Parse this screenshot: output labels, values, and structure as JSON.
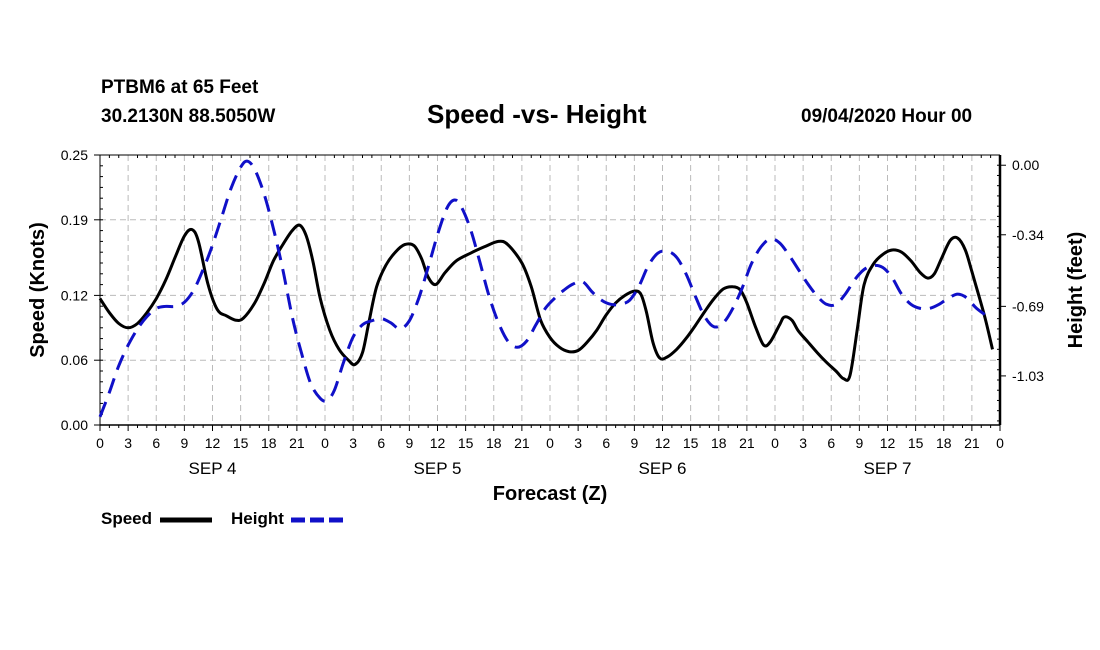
{
  "header": {
    "station": "PTBM6 at 65 Feet",
    "coords": "30.2130N 88.5050W",
    "title": "Speed -vs- Height",
    "date": "09/04/2020 Hour 00"
  },
  "legend": {
    "speed_label": "Speed",
    "height_label": "Height"
  },
  "colors": {
    "speed": "#000000",
    "height": "#1010c8",
    "grid": "#bbbbbb"
  },
  "chart_data": {
    "type": "line",
    "title": "Speed -vs- Height",
    "xlabel": "Forecast (Z)",
    "ylabel_left": "Speed (Knots)",
    "ylabel_right": "Height (feet)",
    "x_tick_labels": [
      "0",
      "3",
      "6",
      "9",
      "12",
      "15",
      "18",
      "21",
      "0",
      "3",
      "6",
      "9",
      "12",
      "15",
      "18",
      "21",
      "0",
      "3",
      "6",
      "9",
      "12",
      "15",
      "18",
      "21",
      "0",
      "3",
      "6",
      "9",
      "12",
      "15",
      "18",
      "21",
      "0"
    ],
    "day_labels": [
      "SEP 4",
      "SEP 5",
      "SEP 6",
      "SEP 7"
    ],
    "y_left_ticks": [
      "0.00",
      "0.06",
      "0.12",
      "0.19",
      "0.25"
    ],
    "y_right_ticks": [
      "0.00",
      "-0.34",
      "-0.69",
      "-1.03"
    ],
    "ylim_left": [
      0,
      0.25
    ],
    "ylim_right": [
      -1.27,
      0.05
    ],
    "xlim_hours": [
      0,
      96
    ],
    "series": [
      {
        "name": "Speed",
        "axis": "left",
        "style": "solid",
        "points": [
          [
            0,
            0.117
          ],
          [
            1,
            0.104
          ],
          [
            2,
            0.094
          ],
          [
            3,
            0.09
          ],
          [
            4,
            0.094
          ],
          [
            5,
            0.104
          ],
          [
            6,
            0.117
          ],
          [
            7,
            0.134
          ],
          [
            8,
            0.155
          ],
          [
            9,
            0.175
          ],
          [
            9.8,
            0.181
          ],
          [
            10.5,
            0.17
          ],
          [
            11.5,
            0.131
          ],
          [
            12.5,
            0.107
          ],
          [
            13.5,
            0.101
          ],
          [
            14.5,
            0.097
          ],
          [
            15.3,
            0.099
          ],
          [
            16.5,
            0.113
          ],
          [
            17.5,
            0.131
          ],
          [
            18.5,
            0.152
          ],
          [
            19.5,
            0.167
          ],
          [
            20.5,
            0.18
          ],
          [
            21.3,
            0.185
          ],
          [
            22,
            0.175
          ],
          [
            22.7,
            0.152
          ],
          [
            23.5,
            0.117
          ],
          [
            24.5,
            0.088
          ],
          [
            25.5,
            0.07
          ],
          [
            26.5,
            0.06
          ],
          [
            27.2,
            0.056
          ],
          [
            28,
            0.067
          ],
          [
            28.7,
            0.096
          ],
          [
            29.5,
            0.128
          ],
          [
            30.5,
            0.148
          ],
          [
            31.5,
            0.16
          ],
          [
            32.5,
            0.167
          ],
          [
            33.5,
            0.166
          ],
          [
            34.3,
            0.154
          ],
          [
            35,
            0.137
          ],
          [
            35.8,
            0.13
          ],
          [
            36.8,
            0.141
          ],
          [
            38,
            0.152
          ],
          [
            39.5,
            0.159
          ],
          [
            41,
            0.165
          ],
          [
            42.5,
            0.17
          ],
          [
            43.5,
            0.167
          ],
          [
            45,
            0.15
          ],
          [
            46,
            0.128
          ],
          [
            47,
            0.097
          ],
          [
            48,
            0.081
          ],
          [
            49,
            0.072
          ],
          [
            50,
            0.068
          ],
          [
            51,
            0.069
          ],
          [
            52,
            0.077
          ],
          [
            53,
            0.088
          ],
          [
            54,
            0.102
          ],
          [
            55,
            0.113
          ],
          [
            56,
            0.12
          ],
          [
            57,
            0.124
          ],
          [
            57.7,
            0.121
          ],
          [
            58.3,
            0.104
          ],
          [
            59,
            0.076
          ],
          [
            59.7,
            0.062
          ],
          [
            60.5,
            0.063
          ],
          [
            61.5,
            0.07
          ],
          [
            62.5,
            0.08
          ],
          [
            63.5,
            0.092
          ],
          [
            64.5,
            0.105
          ],
          [
            65.5,
            0.117
          ],
          [
            66.5,
            0.126
          ],
          [
            67.5,
            0.128
          ],
          [
            68.3,
            0.125
          ],
          [
            69,
            0.113
          ],
          [
            70,
            0.089
          ],
          [
            70.8,
            0.074
          ],
          [
            71.5,
            0.077
          ],
          [
            72.5,
            0.093
          ],
          [
            73,
            0.1
          ],
          [
            73.8,
            0.097
          ],
          [
            74.5,
            0.087
          ],
          [
            75.5,
            0.077
          ],
          [
            76.5,
            0.067
          ],
          [
            77.5,
            0.058
          ],
          [
            78.5,
            0.05
          ],
          [
            79.3,
            0.043
          ],
          [
            80,
            0.046
          ],
          [
            80.8,
            0.09
          ],
          [
            81.5,
            0.13
          ],
          [
            82.5,
            0.149
          ],
          [
            83.5,
            0.158
          ],
          [
            84.5,
            0.162
          ],
          [
            85.5,
            0.16
          ],
          [
            86.5,
            0.152
          ],
          [
            87.5,
            0.141
          ],
          [
            88.3,
            0.136
          ],
          [
            89,
            0.14
          ],
          [
            89.8,
            0.155
          ],
          [
            90.7,
            0.171
          ],
          [
            91.5,
            0.173
          ],
          [
            92.3,
            0.162
          ],
          [
            93,
            0.142
          ],
          [
            93.8,
            0.118
          ],
          [
            94.5,
            0.096
          ],
          [
            95.2,
            0.07
          ]
        ]
      },
      {
        "name": "Height",
        "axis": "right",
        "style": "dashed",
        "points": [
          [
            0,
            -1.23
          ],
          [
            1,
            -1.11
          ],
          [
            2,
            -0.98
          ],
          [
            3,
            -0.88
          ],
          [
            4,
            -0.8
          ],
          [
            5,
            -0.74
          ],
          [
            6,
            -0.7
          ],
          [
            7,
            -0.69
          ],
          [
            8,
            -0.69
          ],
          [
            9,
            -0.67
          ],
          [
            10,
            -0.61
          ],
          [
            11,
            -0.51
          ],
          [
            12,
            -0.39
          ],
          [
            13,
            -0.25
          ],
          [
            14,
            -0.11
          ],
          [
            15,
            -0.01
          ],
          [
            15.7,
            0.02
          ],
          [
            16.5,
            -0.02
          ],
          [
            17.5,
            -0.14
          ],
          [
            18.5,
            -0.31
          ],
          [
            19.5,
            -0.51
          ],
          [
            20.5,
            -0.74
          ],
          [
            21.5,
            -0.92
          ],
          [
            22.5,
            -1.07
          ],
          [
            23.5,
            -1.14
          ],
          [
            24.2,
            -1.15
          ],
          [
            25,
            -1.1
          ],
          [
            26,
            -0.96
          ],
          [
            27,
            -0.84
          ],
          [
            28,
            -0.78
          ],
          [
            29,
            -0.76
          ],
          [
            30,
            -0.75
          ],
          [
            31,
            -0.77
          ],
          [
            32,
            -0.8
          ],
          [
            33,
            -0.76
          ],
          [
            34,
            -0.65
          ],
          [
            35,
            -0.5
          ],
          [
            36,
            -0.34
          ],
          [
            37,
            -0.21
          ],
          [
            37.8,
            -0.17
          ],
          [
            38.5,
            -0.2
          ],
          [
            39.5,
            -0.31
          ],
          [
            40.5,
            -0.47
          ],
          [
            41.5,
            -0.64
          ],
          [
            42.5,
            -0.77
          ],
          [
            43.5,
            -0.86
          ],
          [
            44.5,
            -0.89
          ],
          [
            45.5,
            -0.86
          ],
          [
            46.5,
            -0.78
          ],
          [
            47.5,
            -0.7
          ],
          [
            48.5,
            -0.65
          ],
          [
            49.5,
            -0.61
          ],
          [
            50.5,
            -0.58
          ],
          [
            51.5,
            -0.57
          ],
          [
            52.5,
            -0.62
          ],
          [
            53.5,
            -0.66
          ],
          [
            54.5,
            -0.68
          ],
          [
            55.5,
            -0.68
          ],
          [
            56.5,
            -0.66
          ],
          [
            57.5,
            -0.59
          ],
          [
            58.5,
            -0.49
          ],
          [
            59.5,
            -0.43
          ],
          [
            60.5,
            -0.42
          ],
          [
            61.5,
            -0.45
          ],
          [
            62.5,
            -0.53
          ],
          [
            63.5,
            -0.64
          ],
          [
            64.5,
            -0.74
          ],
          [
            65.5,
            -0.79
          ],
          [
            66.5,
            -0.77
          ],
          [
            67.5,
            -0.7
          ],
          [
            68.5,
            -0.6
          ],
          [
            69.5,
            -0.48
          ],
          [
            70.5,
            -0.4
          ],
          [
            71.5,
            -0.36
          ],
          [
            72.5,
            -0.38
          ],
          [
            73.5,
            -0.44
          ],
          [
            74.5,
            -0.51
          ],
          [
            75.5,
            -0.58
          ],
          [
            76.5,
            -0.64
          ],
          [
            77.5,
            -0.68
          ],
          [
            78.5,
            -0.68
          ],
          [
            79.5,
            -0.63
          ],
          [
            80.5,
            -0.56
          ],
          [
            81.5,
            -0.51
          ],
          [
            82.5,
            -0.49
          ],
          [
            83.5,
            -0.5
          ],
          [
            84.5,
            -0.55
          ],
          [
            85.5,
            -0.63
          ],
          [
            86.5,
            -0.68
          ],
          [
            87.5,
            -0.7
          ],
          [
            88.5,
            -0.7
          ],
          [
            89.5,
            -0.68
          ],
          [
            90.5,
            -0.65
          ],
          [
            91.5,
            -0.63
          ],
          [
            92.5,
            -0.65
          ],
          [
            93.5,
            -0.7
          ],
          [
            95,
            -0.75
          ]
        ]
      }
    ]
  }
}
